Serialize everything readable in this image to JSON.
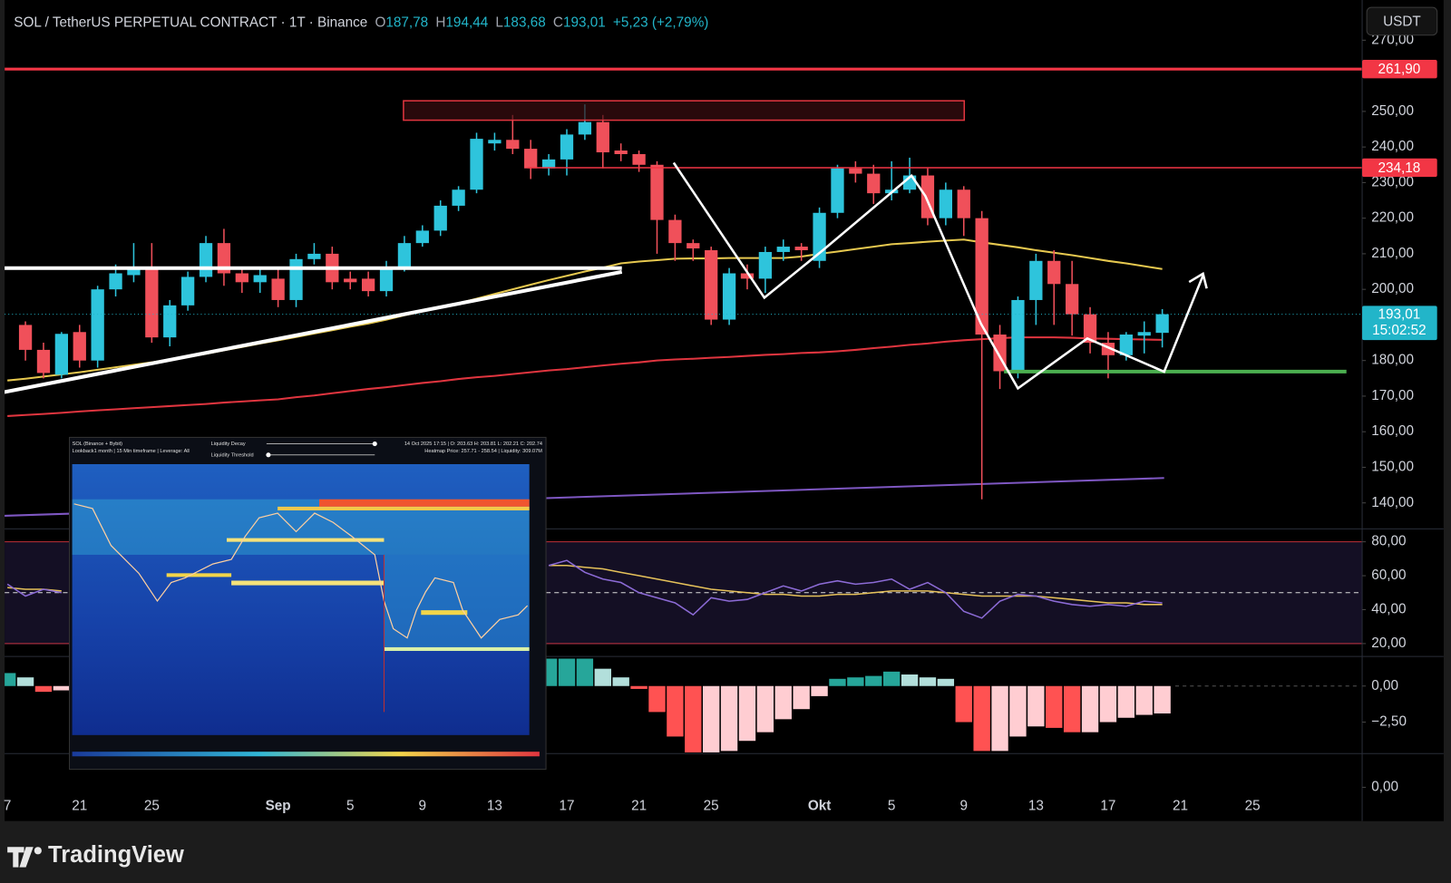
{
  "header": {
    "symbol": "SOL / TetherUS PERPETUAL CONTRACT · 1T · Binance",
    "ohlc": [
      [
        "O",
        "187,78"
      ],
      [
        "H",
        "194,44"
      ],
      [
        "L",
        "183,68"
      ],
      [
        "C",
        "193,01"
      ]
    ],
    "change": "+5,23 (+2,79%)"
  },
  "currency": "USDT",
  "branding": {
    "logo": "TradingView"
  },
  "inset": {
    "source": "SOL (Binance + Bybit)",
    "settings": "Lookback1 month | 15 Min timeframe | Leverage: All",
    "decay": "Liquidity Decay",
    "threshold": "Liquidity Threshold",
    "bar": "14 Oct 2025 17:15 | O: 203.63 H: 203.81 L: 202.21 C: 202.74",
    "heatmap": "Heatmap Price: 257.71 - 258.54 | Liquidity: 309.07M"
  },
  "chart_data": [
    {
      "type": "candlestick",
      "categories": [
        "7",
        null,
        null,
        null,
        "21",
        null,
        null,
        null,
        "25",
        null,
        null,
        null,
        null,
        null,
        null,
        "Sep",
        null,
        null,
        null,
        "5",
        null,
        null,
        null,
        "9",
        null,
        null,
        null,
        "13",
        null,
        null,
        null,
        "17",
        null,
        null,
        null,
        "21",
        null,
        null,
        null,
        "25",
        null,
        null,
        null,
        null,
        null,
        "Okt",
        null,
        null,
        null,
        "5",
        null,
        null,
        null,
        "9",
        null,
        null,
        null,
        "13",
        null,
        null,
        null,
        "17",
        null,
        null,
        null,
        "21",
        null,
        null,
        null,
        "25"
      ],
      "open": [
        null,
        190,
        183,
        176,
        188,
        180,
        200,
        204,
        206,
        186.5,
        195.5,
        203.5,
        213,
        204.5,
        202,
        203,
        197,
        208.5,
        210,
        203,
        203,
        199.5,
        206,
        213,
        216.5,
        223.5,
        228,
        241,
        242,
        239.5,
        234,
        236.5,
        243.5,
        247,
        239,
        238,
        235,
        219.5,
        213,
        211,
        191.5,
        204.5,
        203,
        210.5,
        212,
        208,
        221.5,
        234,
        232.5,
        227,
        228,
        232,
        220,
        228,
        220,
        187.3,
        177,
        197,
        208,
        201.5,
        193,
        185,
        181.5,
        187,
        187.78,
        null,
        null,
        null,
        null,
        null
      ],
      "high": [
        null,
        191,
        185,
        188,
        190,
        201,
        207,
        213,
        213,
        197,
        205,
        215,
        217,
        206,
        206,
        206,
        210,
        213,
        212,
        205,
        205,
        208,
        215,
        218,
        225,
        229,
        244,
        244,
        249,
        242,
        238,
        245,
        252,
        249,
        241,
        239,
        236,
        221,
        214,
        212,
        206,
        207,
        212,
        214,
        213,
        223,
        235,
        236,
        235,
        236,
        237,
        234,
        230,
        229,
        222,
        190,
        198,
        210,
        211,
        208,
        195,
        188,
        188,
        191,
        194.44,
        null,
        null,
        null,
        null,
        null
      ],
      "low": [
        null,
        180,
        175,
        175,
        178,
        178,
        198,
        202,
        185,
        184,
        194,
        202,
        201,
        199,
        199,
        195,
        195,
        207,
        200,
        200,
        198,
        198,
        205,
        212,
        215,
        222,
        227,
        239,
        238,
        231,
        232,
        232,
        242,
        234,
        236,
        233,
        210,
        208,
        208,
        190,
        190,
        200,
        199,
        208,
        208,
        206,
        220,
        230,
        224,
        225,
        227,
        218,
        218,
        215,
        141,
        172,
        175,
        190,
        190,
        187,
        182,
        175,
        180,
        182,
        183.68,
        null,
        null,
        null,
        null,
        null
      ],
      "close": [
        null,
        183,
        176.5,
        187.5,
        180,
        200,
        204.5,
        206,
        186.5,
        195.5,
        203.5,
        213,
        204.5,
        202,
        204,
        197,
        208.5,
        210,
        202,
        202,
        199.5,
        206,
        213,
        216.5,
        223.5,
        228,
        242.3,
        242,
        239.5,
        234,
        236.5,
        243.5,
        247,
        238.5,
        238,
        235,
        219.5,
        213,
        211.5,
        191.5,
        204.5,
        203,
        210.5,
        212,
        211,
        221.5,
        234,
        232.5,
        227,
        228,
        232,
        220,
        228,
        220,
        187.3,
        177,
        197,
        208,
        201.5,
        193,
        185,
        181.5,
        187.3,
        188,
        193.01,
        null,
        null,
        null,
        null,
        null
      ],
      "up_color": "#2ec4dc",
      "down_color": "#f0505a",
      "lines": [
        {
          "color": "#e6c84f",
          "values": [
            174.4,
            174.9,
            175.5,
            176.1,
            176.7,
            177.4,
            178.1,
            178.8,
            179.5,
            180.3,
            181.0,
            181.9,
            182.9,
            183.8,
            184.8,
            185.7,
            186.6,
            187.6,
            188.5,
            189.5,
            190.4,
            191.5,
            192.7,
            193.8,
            195.0,
            196.1,
            197.4,
            198.7,
            200.0,
            201.3,
            202.6,
            203.8,
            205.0,
            206.1,
            207.3,
            207.8,
            208.2,
            208.6,
            208.7,
            208.7,
            208.8,
            208.8,
            208.8,
            208.8,
            209.2,
            210.0,
            210.6,
            211.3,
            212.0,
            212.7,
            213.0,
            213.4,
            213.7,
            214.0,
            213.2,
            212.5,
            211.8,
            211.0,
            210.3,
            209.6,
            208.8,
            208.0,
            207.3,
            206.5,
            205.7,
            null,
            null,
            null,
            null,
            null
          ]
        },
        {
          "color": "#e0353f",
          "values": [
            164.4,
            164.7,
            165.0,
            165.3,
            165.7,
            166.0,
            166.3,
            166.6,
            166.9,
            167.2,
            167.5,
            167.8,
            168.2,
            168.5,
            168.8,
            169.1,
            169.7,
            170.2,
            170.8,
            171.4,
            172.0,
            172.5,
            173.1,
            173.7,
            174.2,
            174.8,
            175.3,
            175.7,
            176.2,
            176.7,
            177.2,
            177.6,
            178.1,
            178.6,
            179.1,
            179.5,
            180.0,
            180.3,
            180.5,
            180.8,
            181.0,
            181.3,
            181.6,
            181.8,
            182.1,
            182.3,
            182.6,
            183.0,
            183.5,
            183.9,
            184.4,
            184.8,
            185.3,
            185.7,
            186.0,
            186.3,
            186.5,
            186.5,
            186.5,
            186.4,
            186.2,
            186.1,
            186.0,
            185.9,
            185.8,
            null,
            null,
            null,
            null,
            null
          ]
        }
      ],
      "levels": [
        {
          "value": 261.9,
          "label": "261,90",
          "color": "#f23645"
        },
        {
          "value": 234.18,
          "label": "234,18",
          "color": "#f23645"
        }
      ],
      "support": {
        "value": 176.9,
        "color": "#4caf50"
      },
      "last": {
        "value": 193.01,
        "label": "193,01",
        "countdown": "15:02:52",
        "color": "#22b5c9"
      },
      "ylim": [
        132.7,
        281.3
      ],
      "yticks": [
        {
          "value": 140,
          "label": "140,00"
        },
        {
          "value": 150,
          "label": "150,00"
        },
        {
          "value": 160,
          "label": "160,00"
        },
        {
          "value": 170,
          "label": "170,00"
        },
        {
          "value": 180,
          "label": "180,00"
        },
        {
          "value": 200,
          "label": "200,00"
        },
        {
          "value": 210,
          "label": "210,00"
        },
        {
          "value": 220,
          "label": "220,00"
        },
        {
          "value": 230,
          "label": "230,00"
        },
        {
          "value": 240,
          "label": "240,00"
        },
        {
          "value": 250,
          "label": "250,00"
        },
        {
          "value": 270,
          "label": "270,00"
        }
      ]
    },
    {
      "type": "line",
      "values": [
        55,
        48,
        52,
        50,
        null,
        null,
        null,
        null,
        null,
        null,
        null,
        null,
        null,
        null,
        null,
        null,
        null,
        null,
        null,
        null,
        null,
        null,
        null,
        null,
        null,
        null,
        null,
        null,
        null,
        null,
        66,
        69,
        62,
        58,
        56,
        50,
        47,
        44,
        37,
        47,
        45,
        46,
        50,
        54,
        51,
        55,
        57,
        55,
        56,
        58,
        52,
        56,
        50,
        39,
        35,
        45,
        49,
        48,
        45,
        43,
        42,
        43,
        42,
        45,
        44,
        null,
        null,
        null,
        null,
        null
      ],
      "ma": [
        53,
        52,
        52,
        51,
        null,
        null,
        null,
        null,
        null,
        null,
        null,
        null,
        null,
        null,
        null,
        null,
        null,
        null,
        null,
        null,
        null,
        null,
        null,
        null,
        null,
        null,
        null,
        null,
        null,
        null,
        66,
        66,
        65,
        64,
        62,
        60,
        58,
        56,
        54,
        52,
        51,
        50,
        49,
        49,
        48,
        48,
        49,
        49,
        50,
        51,
        51,
        51,
        50,
        49,
        48,
        48,
        48,
        48,
        47,
        46,
        45,
        44,
        44,
        43,
        43,
        null,
        null,
        null,
        null,
        null
      ],
      "color": "#8c6bd6",
      "ma_color": "#e6c25a",
      "upper": 80,
      "middle": 50,
      "lower": 20,
      "ylim": [
        12.4,
        87.6
      ],
      "yticks": [
        {
          "value": 80,
          "label": "80,00"
        },
        {
          "value": 60,
          "label": "60,00"
        },
        {
          "value": 40,
          "label": "40,00"
        },
        {
          "value": 20,
          "label": "20,00"
        }
      ]
    },
    {
      "type": "bar",
      "values": [
        0.9,
        0.6,
        -0.4,
        -0.3,
        null,
        null,
        null,
        null,
        null,
        null,
        null,
        null,
        null,
        null,
        null,
        null,
        null,
        null,
        null,
        null,
        null,
        null,
        null,
        null,
        null,
        null,
        null,
        null,
        null,
        null,
        1.9,
        1.9,
        1.9,
        1.2,
        0.6,
        -0.2,
        -1.8,
        -3.5,
        -4.6,
        -4.6,
        -4.5,
        -3.8,
        -3.2,
        -2.3,
        -1.6,
        -0.7,
        0.5,
        0.6,
        0.7,
        1.0,
        0.8,
        0.6,
        0.5,
        -2.5,
        -4.5,
        -4.5,
        -3.5,
        -2.8,
        -2.9,
        -3.2,
        -3.2,
        -2.5,
        -2.2,
        -2.0,
        -1.9,
        null,
        null,
        null,
        null,
        null
      ],
      "colors": {
        "grow_above": "#26a69a",
        "fall_above": "#b2dfdb",
        "grow_below": "#ffcdd2",
        "fall_below": "#ff5252"
      },
      "ylim": [
        -4.68,
        2.05
      ],
      "yticks": [
        {
          "value": 0,
          "label": "0,00"
        },
        {
          "value": -2.5,
          "label": "−2,50"
        }
      ]
    },
    {
      "type": "line",
      "ylim": [
        -1,
        1
      ],
      "yticks": [
        {
          "value": 0,
          "label": "0,00"
        }
      ]
    }
  ]
}
